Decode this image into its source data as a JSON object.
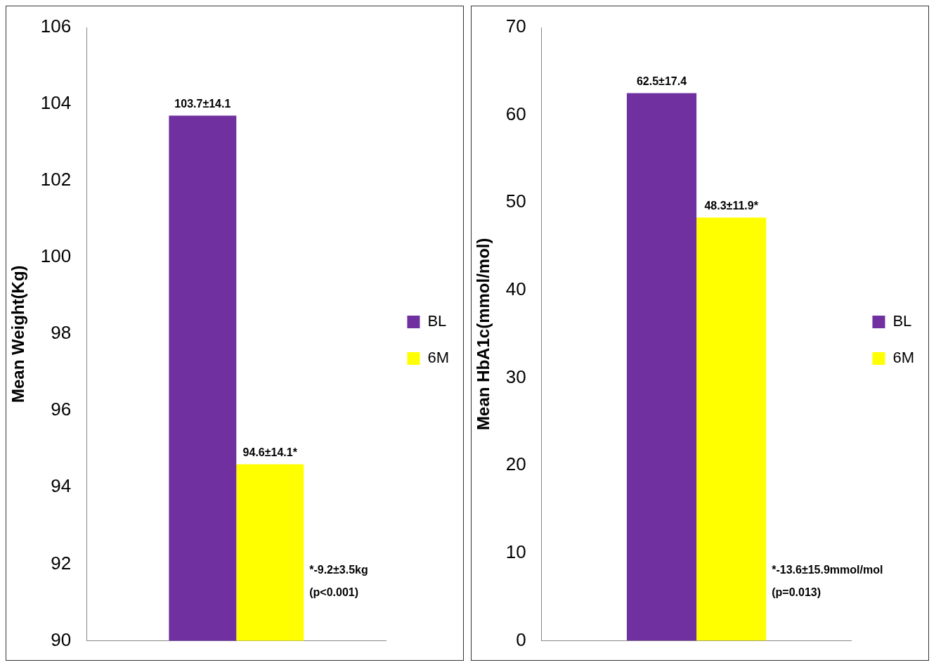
{
  "chart_data": [
    {
      "type": "bar",
      "ylabel": "Mean Weight(Kg)",
      "categories": [
        null
      ],
      "series": [
        {
          "name": "BL",
          "color": "#7030a0",
          "values": [
            103.7
          ],
          "value_labels": [
            "103.7±14.1"
          ]
        },
        {
          "name": "6M",
          "color": "#ffff00",
          "values": [
            94.6
          ],
          "value_labels": [
            "94.6±14.1*"
          ]
        }
      ],
      "ylim": [
        90,
        106
      ],
      "yticks": [
        90,
        92,
        94,
        96,
        98,
        100,
        102,
        104,
        106
      ],
      "grid": false,
      "legend": "right",
      "annotations": [
        "*-9.2±3.5kg",
        "(p<0.001)"
      ]
    },
    {
      "type": "bar",
      "ylabel": "Mean HbA1c(mmol/mol)",
      "categories": [
        null
      ],
      "series": [
        {
          "name": "BL",
          "color": "#7030a0",
          "values": [
            62.5
          ],
          "value_labels": [
            "62.5±17.4"
          ]
        },
        {
          "name": "6M",
          "color": "#ffff00",
          "values": [
            48.3
          ],
          "value_labels": [
            "48.3±11.9*"
          ]
        }
      ],
      "ylim": [
        0,
        70
      ],
      "yticks": [
        0,
        10,
        20,
        30,
        40,
        50,
        60,
        70
      ],
      "grid": false,
      "legend": "right",
      "annotations": [
        "*-13.6±15.9mmol/mol",
        "(p=0.013)"
      ]
    }
  ]
}
